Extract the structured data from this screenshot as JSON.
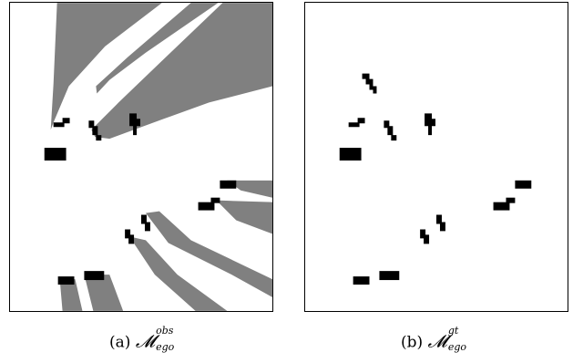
{
  "figure": {
    "panels": [
      {
        "label": "(a)",
        "symbol": "𝓜",
        "superscript": "obs",
        "subscript": "ego",
        "colors": {
          "occluded": "#808080",
          "free": "#ffffff",
          "vehicle": "#000000"
        }
      },
      {
        "label": "(b)",
        "symbol": "𝓜",
        "superscript": "gt",
        "subscript": "ego",
        "colors": {
          "free": "#ffffff",
          "vehicle": "#000000"
        }
      }
    ]
  }
}
